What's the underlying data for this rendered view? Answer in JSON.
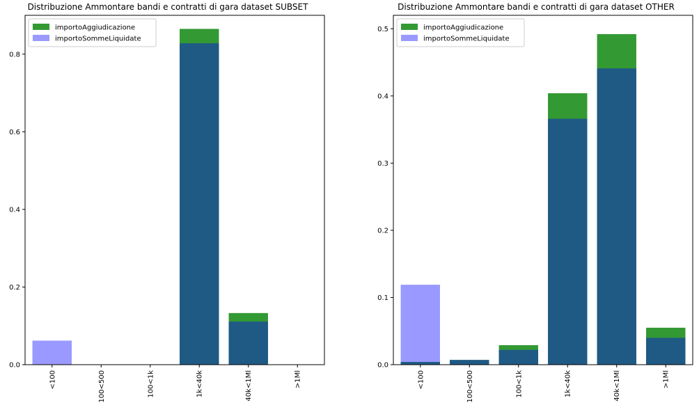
{
  "colors": {
    "importoAggiudicazione": "#339933",
    "importoSommeLiquidate": "#9999ff",
    "overlap": "#1f5a85",
    "axis": "#000000"
  },
  "chart_data": [
    {
      "type": "bar",
      "title": "Distribuzione Ammontare bandi e contratti di gara dataset SUBSET",
      "xlabel": "",
      "ylabel": "",
      "categories": [
        "<100",
        "100<500",
        "100<1k",
        "1k<40k",
        "40k<1Ml",
        ">1Ml"
      ],
      "ylim": [
        0,
        0.9
      ],
      "yticks": [
        0.0,
        0.2,
        0.4,
        0.6,
        0.8
      ],
      "ytick_labels": [
        "0.0",
        "0.2",
        "0.4",
        "0.6",
        "0.8"
      ],
      "legend_position": "top-left",
      "grid": false,
      "series": [
        {
          "name": "importoAggiudicazione",
          "values": [
            0.0,
            0.0,
            0.0,
            0.865,
            0.133,
            0.0
          ]
        },
        {
          "name": "importoSommeLiquidate",
          "values": [
            0.062,
            0.0,
            0.0,
            0.828,
            0.111,
            0.0
          ]
        }
      ]
    },
    {
      "type": "bar",
      "title": "Distribuzione Ammontare bandi e contratti di gara dataset OTHER",
      "xlabel": "",
      "ylabel": "",
      "categories": [
        "<100",
        "100<500",
        "100<1k",
        "1k<40k",
        "40k<1Ml",
        ">1Ml"
      ],
      "ylim": [
        0,
        0.52
      ],
      "yticks": [
        0.0,
        0.1,
        0.2,
        0.3,
        0.4,
        0.5
      ],
      "ytick_labels": [
        "0.0",
        "0.1",
        "0.2",
        "0.3",
        "0.4",
        "0.5"
      ],
      "legend_position": "top-left",
      "grid": false,
      "series": [
        {
          "name": "importoAggiudicazione",
          "values": [
            0.004,
            0.007,
            0.029,
            0.404,
            0.492,
            0.055
          ]
        },
        {
          "name": "importoSommeLiquidate",
          "values": [
            0.119,
            0.007,
            0.022,
            0.366,
            0.441,
            0.04
          ]
        }
      ]
    }
  ]
}
